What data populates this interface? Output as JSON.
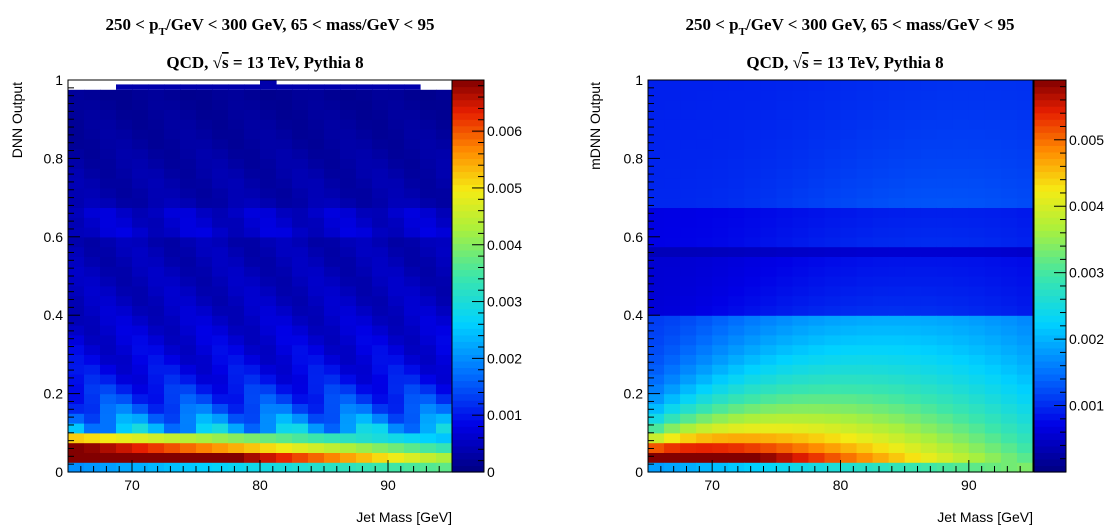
{
  "chart_data": [
    {
      "type": "heatmap",
      "title_parts": [
        "250 < p",
        "T",
        "/GeV < 300 GeV, 65 < mass/GeV < 95"
      ],
      "subtitle_parts": [
        "QCD,  ",
        "√",
        "s",
        " = 13 TeV, Pythia 8"
      ],
      "xlabel": "Jet Mass [GeV]",
      "ylabel": "DNN Output",
      "xlim": [
        65,
        95
      ],
      "ylim": [
        0,
        1
      ],
      "x_ticks": [
        70,
        80,
        90
      ],
      "y_ticks": [
        0,
        0.2,
        0.4,
        0.6,
        0.8,
        1
      ],
      "y_tick_labels": [
        "0",
        "0.2",
        "0.4",
        "0.6",
        "0.8",
        "1"
      ],
      "x_bins": 24,
      "y_bins": 40,
      "z_range": [
        0,
        0.0069
      ],
      "z_ticks": [
        0,
        0.001,
        0.002,
        0.003,
        0.004,
        0.005,
        0.006
      ],
      "z_tick_labels": [
        "0",
        "0.001",
        "0.002",
        "0.003",
        "0.004",
        "0.005",
        "0.006"
      ],
      "colormap": "rainbow (dark blue to dark red)",
      "band_profile": [
        0.0022,
        0.006,
        0.0047,
        0.0035,
        0.0027,
        0.0022,
        0.0018,
        0.0015,
        0.0013,
        0.0011,
        0.001,
        0.0009,
        0.00085,
        0.0008,
        0.00075,
        0.0007,
        0.00065,
        0.0006,
        0.00058,
        0.00055,
        0.00053,
        0.0005,
        0.0005,
        0.00048,
        0.00075,
        0.0007,
        0.0007,
        0.00045,
        0.0004,
        0.0004,
        0.00038,
        0.00035,
        0.00033,
        0.0003,
        0.00028,
        0.00026,
        0.00024,
        0.00022,
        0.0002,
        0.00018
      ],
      "mass_trend": [
        1.5,
        0.7
      ],
      "empty_cells": [
        [
          0,
          39
        ],
        [
          1,
          39
        ],
        [
          2,
          39
        ],
        [
          23,
          39
        ],
        [
          10,
          39
        ],
        [
          11,
          39
        ],
        [
          12,
          39
        ],
        [
          13,
          39
        ],
        [
          14,
          39
        ],
        [
          15,
          39
        ],
        [
          16,
          39
        ],
        [
          17,
          39
        ],
        [
          18,
          39
        ],
        [
          19,
          39
        ],
        [
          20,
          39
        ],
        [
          21,
          39
        ],
        [
          22,
          39
        ],
        [
          3,
          39
        ],
        [
          4,
          39
        ],
        [
          5,
          39
        ],
        [
          6,
          39
        ],
        [
          7,
          39
        ],
        [
          8,
          39
        ],
        [
          9,
          39
        ]
      ]
    },
    {
      "type": "heatmap",
      "title_parts": [
        "250 < p",
        "T",
        "/GeV < 300 GeV, 65 < mass/GeV < 95"
      ],
      "subtitle_parts": [
        "QCD,  ",
        "√",
        "s",
        " = 13 TeV, Pythia 8"
      ],
      "xlabel": "Jet Mass [GeV]",
      "ylabel": "mDNN Output",
      "xlim": [
        65,
        95
      ],
      "ylim": [
        0,
        1
      ],
      "x_ticks": [
        70,
        80,
        90
      ],
      "y_ticks": [
        0,
        0.2,
        0.4,
        0.6,
        0.8,
        1
      ],
      "y_tick_labels": [
        "0",
        "0.2",
        "0.4",
        "0.6",
        "0.8",
        "1"
      ],
      "x_bins": 24,
      "y_bins": 40,
      "z_range": [
        0,
        0.0059
      ],
      "z_ticks": [
        0.001,
        0.002,
        0.003,
        0.004,
        0.005
      ],
      "z_tick_labels": [
        "0.001",
        "0.002",
        "0.003",
        "0.004",
        "0.005"
      ],
      "colormap": "rainbow (dark blue to dark red)",
      "low_mass_peak": [
        0.0055,
        0.005,
        0.0044,
        0.0038,
        0.0032,
        0.0026,
        0.0021,
        0.0017,
        0.0014,
        0.0012,
        0.001
      ],
      "high_mass_bottom": 0.0034,
      "empty_cells": []
    }
  ]
}
